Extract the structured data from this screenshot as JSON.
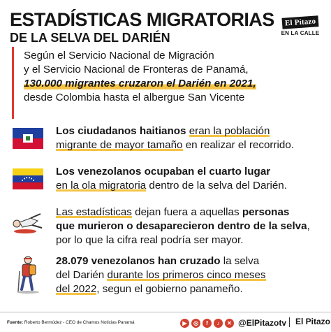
{
  "header": {
    "title": "ESTADÍSTICAS MIGRATORIAS",
    "subtitle": "DE LA SELVA DEL DARIÉN"
  },
  "logo": {
    "name": "El Pitazo",
    "tagline": "EN LA CALLE"
  },
  "intro": {
    "line1": "Según el Servicio Nacional de Migración",
    "line2": "y el Servicio Nacional de Fronteras de Panamá,",
    "highlight": "130.000 migrantes cruzaron el Darién en 2021,",
    "line4": "desde Colombia hasta el albergue San Vicente"
  },
  "facts": [
    {
      "icon": "haiti-flag-icon",
      "bold1": "Los ciudadanos haitianos",
      "ul1": "eran la población",
      "line2_ul": "migrante de mayor tamaño",
      "line2_rest": " en realizar el recorrido."
    },
    {
      "icon": "venezuela-flag-icon",
      "bold1": "Los venezolanos ocupaban el cuarto lugar",
      "line2_ul": "en la ola migratoria",
      "line2_rest": " dentro de la selva del Darién."
    },
    {
      "icon": "fallen-person-icon",
      "ul1": "Las estadísticas",
      "rest1": " dejan fuera a aquellas ",
      "bold1": "personas",
      "bold2": "que murieron o desaparecieron dentro de la selva",
      "rest2": ",",
      "line3": "por lo que la cifra real podría ser mayor."
    },
    {
      "icon": "hiker-icon",
      "bold1": "28.079 venezolanos han cruzado",
      "rest1": " la selva",
      "line2a": "del Darién ",
      "line2_ul": "durante los primeros cinco meses",
      "line3_ul": "del 2022",
      "line3_rest": ", segun el gobierno panameño."
    }
  ],
  "footer": {
    "source_label": "Fuente:",
    "source_text": " Roberto Bermúdez - CEO de Chamos Noticias Panamá",
    "handle": "@ElPitazotv",
    "brand": "El Pitazo"
  },
  "colors": {
    "accent_red": "#e03a2f",
    "highlight_yellow": "#f6c445"
  }
}
